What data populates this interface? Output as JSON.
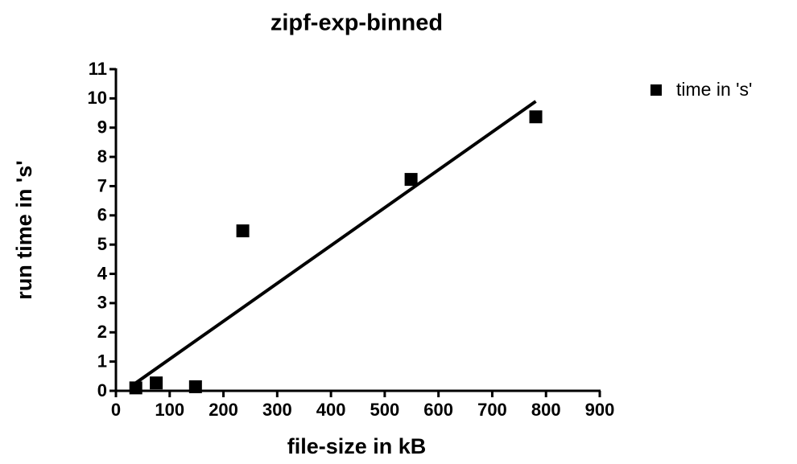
{
  "chart_data": {
    "type": "scatter",
    "title": "zipf-exp-binned",
    "x_label": "file-size in kB",
    "y_label": "run time in 's'",
    "series": [
      {
        "name": "time in 's'",
        "color": "#000000",
        "x": [
          37,
          75,
          148,
          236,
          549,
          781
        ],
        "values": [
          0.1,
          0.27,
          0.14,
          5.47,
          7.23,
          9.37
        ]
      }
    ],
    "trendline": {
      "color": "#000000",
      "x": [
        37,
        781
      ],
      "values": [
        0.27,
        9.9
      ]
    },
    "xlim": [
      0,
      900
    ],
    "xticks": [
      0,
      100,
      200,
      300,
      400,
      500,
      600,
      700,
      800,
      900
    ],
    "ylim": [
      0,
      11
    ],
    "yticks": [
      0,
      1,
      2,
      3,
      4,
      5,
      6,
      7,
      8,
      9,
      10,
      11
    ],
    "legend": "right"
  }
}
